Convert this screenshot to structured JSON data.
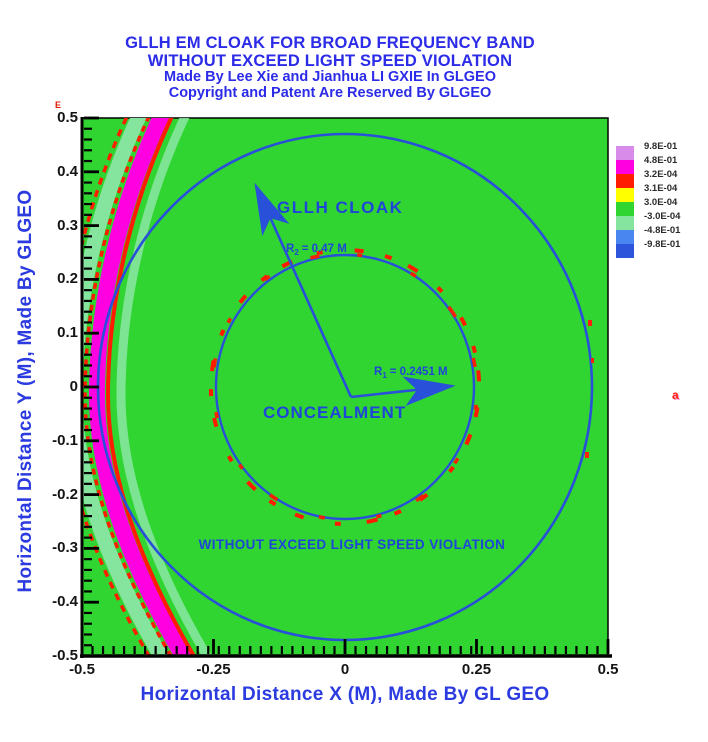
{
  "title": {
    "line1": "GLLH EM CLOAK FOR BROAD FREQUENCY BAND",
    "line2": "WITHOUT EXCEED LIGHT SPEED VIOLATION",
    "line3": "Made By Lee Xie and Jianhua LI GXIE In GLGEO",
    "line4": "Copyright and Patent Are Reserved By GLGEO",
    "color": "#2b2be8"
  },
  "plot": {
    "background_color": "#31d531",
    "x_axis": {
      "label": "Horizontal Distance X (M), Made By GL GEO",
      "tick_labels": [
        "-0.5",
        "-0.25",
        "0",
        "0.25",
        "0.5"
      ]
    },
    "y_axis": {
      "label": "Horizontal Distance Y (M), Made By GLGEO",
      "tick_labels": [
        "0.5",
        "0.4",
        "0.3",
        "0.2",
        "0.1",
        "0",
        "-0.1",
        "-0.2",
        "-0.3",
        "-0.4",
        "-0.5"
      ]
    },
    "annotations": {
      "cloak_label": "GLLH CLOAK",
      "concealment_label": "CONCEALMENT",
      "bottom_note": "WITHOUT EXCEED LIGHT SPEED VIOLATION",
      "r2_prefix": "R",
      "r2_sub": "2",
      "r2_rest": "= 0.47 M",
      "r1_prefix": "R",
      "r1_sub": "1",
      "r1_rest": "= 0.2451 M"
    },
    "stray_marks": {
      "left_mark": "E",
      "right_mark": "a"
    }
  },
  "legend": {
    "labels": [
      "9.8E-01",
      "4.8E-01",
      "3.2E-04",
      "3.1E-04",
      "3.0E-04",
      "-3.0E-04",
      "-4.8E-01",
      "-9.8E-01"
    ],
    "colors": [
      "#ffffff",
      "#d98be9",
      "#ff00e0",
      "#ff1c00",
      "#ffff00",
      "#31d531",
      "#85e59e",
      "#4a86ef",
      "#2c55dc"
    ]
  },
  "chart_data": {
    "type": "heatmap",
    "title": "GLLH EM CLOAK FOR BROAD FREQUENCY BAND WITHOUT EXCEED LIGHT SPEED VIOLATION",
    "subtitle": "Made By Lee Xie and Jianhua LI GXIE In GLGEO / Copyright and Patent Are Reserved By GLGEO",
    "xlabel": "Horizontal Distance X (M), Made By GL GEO",
    "ylabel": "Horizontal Distance Y (M), Made By GLGEO",
    "xlim": [
      -0.5,
      0.5
    ],
    "ylim": [
      -0.5,
      0.5
    ],
    "x_ticks": [
      -0.5,
      -0.25,
      0,
      0.25,
      0.5
    ],
    "y_ticks": [
      0.5,
      0.4,
      0.3,
      0.2,
      0.1,
      0,
      -0.1,
      -0.2,
      -0.3,
      -0.4,
      -0.5
    ],
    "minor_tick_step": 0.02,
    "grid": false,
    "legend_position": "right",
    "colorbar_boundary_labels": [
      "9.8E-01",
      "4.8E-01",
      "3.2E-04",
      "3.1E-04",
      "3.0E-04",
      "-3.0E-04",
      "-4.8E-01",
      "-9.8E-01"
    ],
    "colorbar_band_colors": [
      "#ffffff",
      "#d98be9",
      "#ff00e0",
      "#ff1c00",
      "#ffff00",
      "#31d531",
      "#85e59e",
      "#4a86ef",
      "#2c55dc"
    ],
    "field_background_value_band": "between -3.0E-04 and 3.0E-04 (green)",
    "circles": [
      {
        "name": "outer cloak boundary",
        "center": [
          0,
          0
        ],
        "radius_m": 0.47,
        "style": "solid blue"
      },
      {
        "name": "inner concealment boundary",
        "center": [
          0,
          0
        ],
        "radius_m": 0.2451,
        "style": "solid blue with red dashed ring"
      }
    ],
    "arrows": [
      {
        "label": "R2 = 0.47 M",
        "from": [
          0.01,
          -0.02
        ],
        "to": [
          -0.175,
          0.385
        ]
      },
      {
        "label": "R1 = 0.2451 M",
        "from": [
          0.01,
          -0.02
        ],
        "to": [
          0.21,
          0.005
        ]
      }
    ],
    "annotations": [
      {
        "text": "GLLH CLOAK",
        "x": -0.12,
        "y": 0.33
      },
      {
        "text": "CONCEALMENT",
        "x": -0.15,
        "y": -0.055
      },
      {
        "text": "WITHOUT EXCEED LIGHT SPEED VIOLATION",
        "x": -0.3,
        "y": -0.3
      }
    ],
    "wavefront_bands": {
      "description": "curved incident wavefront stripes hugging left side of outer circle",
      "colors_left_to_right": [
        "#ff1c00 dashed",
        "#85e59e",
        "#ff1c00 dashed",
        "#ff00e0",
        "#ff1c00",
        "#85e59e"
      ]
    }
  }
}
